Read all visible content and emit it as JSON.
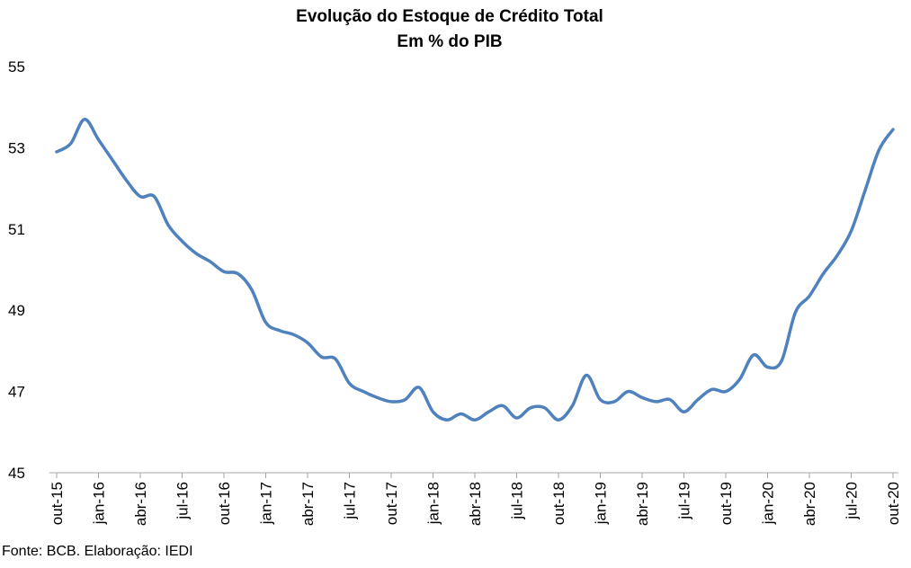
{
  "source": "Fonte: BCB. Elaboração: IEDI",
  "chart_data": {
    "type": "line",
    "title": "Evolução do Estoque de Crédito Total",
    "subtitle": "Em % do PIB",
    "xlabel": "",
    "ylabel": "",
    "ylim": [
      45,
      55
    ],
    "yticks": [
      "45",
      "47",
      "49",
      "51",
      "53",
      "55"
    ],
    "grid": false,
    "legend": "none",
    "line_color": "#4F81BD",
    "x": [
      "out-15",
      "nov-15",
      "dez-15",
      "jan-16",
      "fev-16",
      "mar-16",
      "abr-16",
      "mai-16",
      "jun-16",
      "jul-16",
      "ago-16",
      "set-16",
      "out-16",
      "nov-16",
      "dez-16",
      "jan-17",
      "fev-17",
      "mar-17",
      "abr-17",
      "mai-17",
      "jun-17",
      "jul-17",
      "ago-17",
      "set-17",
      "out-17",
      "nov-17",
      "dez-17",
      "jan-18",
      "fev-18",
      "mar-18",
      "abr-18",
      "mai-18",
      "jun-18",
      "jul-18",
      "ago-18",
      "set-18",
      "out-18",
      "nov-18",
      "dez-18",
      "jan-19",
      "fev-19",
      "mar-19",
      "abr-19",
      "mai-19",
      "jun-19",
      "jul-19",
      "ago-19",
      "set-19",
      "out-19",
      "nov-19",
      "dez-19",
      "jan-20",
      "fev-20",
      "mar-20",
      "abr-20",
      "mai-20",
      "jun-20",
      "jul-20",
      "ago-20",
      "set-20",
      "out-20"
    ],
    "x_tick_labels": [
      "out-15",
      "jan-16",
      "abr-16",
      "jul-16",
      "out-16",
      "jan-17",
      "abr-17",
      "jul-17",
      "out-17",
      "jan-18",
      "abr-18",
      "jul-18",
      "out-18",
      "jan-19",
      "abr-19",
      "jul-19",
      "out-19",
      "jan-20",
      "abr-20",
      "jul-20",
      "out-20"
    ],
    "values": [
      52.9,
      53.1,
      53.7,
      53.2,
      52.7,
      52.2,
      51.8,
      51.8,
      51.1,
      50.7,
      50.4,
      50.2,
      49.95,
      49.9,
      49.5,
      48.7,
      48.5,
      48.4,
      48.2,
      47.85,
      47.8,
      47.2,
      47.0,
      46.85,
      46.75,
      46.8,
      47.1,
      46.5,
      46.3,
      46.45,
      46.3,
      46.5,
      46.65,
      46.35,
      46.6,
      46.6,
      46.3,
      46.65,
      47.4,
      46.8,
      46.75,
      47.0,
      46.85,
      46.75,
      46.8,
      46.5,
      46.8,
      47.05,
      47.0,
      47.3,
      47.9,
      47.6,
      47.75,
      48.95,
      49.35,
      49.9,
      50.35,
      50.95,
      51.95,
      52.95,
      53.45
    ]
  }
}
